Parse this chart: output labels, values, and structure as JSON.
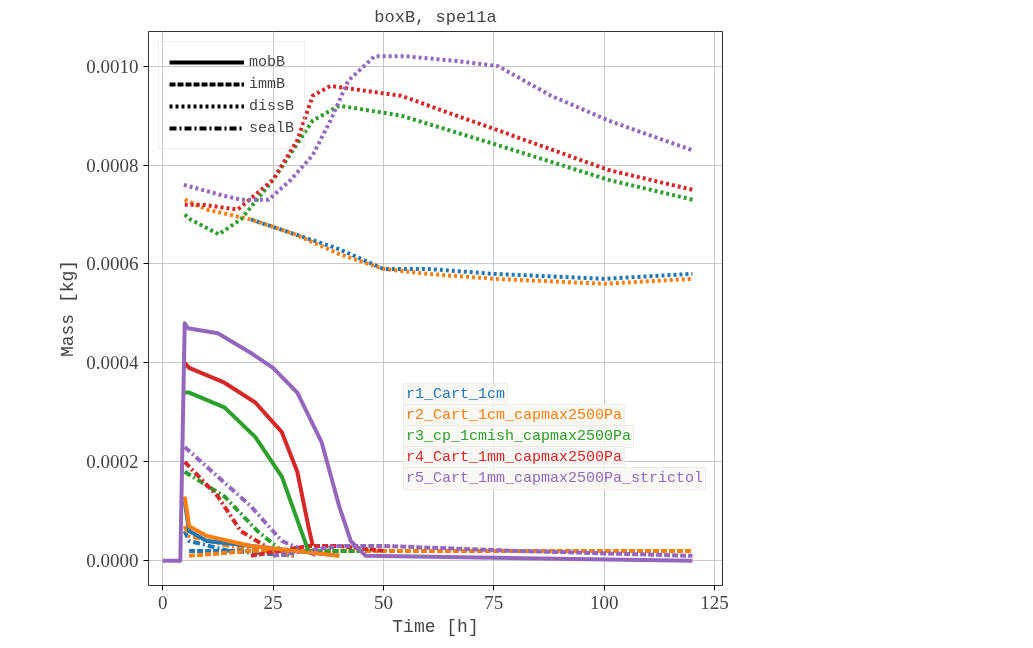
{
  "chart_data": {
    "type": "line",
    "title": "boxB, spe11a",
    "xlabel": "Time [h]",
    "ylabel": "Mass [kg]",
    "xlim": [
      -3.2,
      126.8
    ],
    "ylim": [
      -5e-05,
      0.00107
    ],
    "xticks": [
      0,
      25,
      50,
      75,
      100,
      125
    ],
    "yticks": [
      {
        "value": 0,
        "label": "0.0000"
      },
      {
        "value": 0.0002,
        "label": "0.0002"
      },
      {
        "value": 0.0004,
        "label": "0.0004"
      },
      {
        "value": 0.0006,
        "label": "0.0006"
      },
      {
        "value": 0.0008,
        "label": "0.0008"
      },
      {
        "value": 0.001,
        "label": "0.0010"
      }
    ],
    "grid": true,
    "legend": "bottom right",
    "annotations": [
      "mobB",
      "immB",
      "dissB",
      "sealB"
    ],
    "series": [
      {
        "color": "#1f77b4",
        "line_style": "dotted",
        "x": [
          20,
          30,
          40,
          50,
          60,
          75,
          100,
          120
        ],
        "values": [
          0.00069,
          0.00066,
          0.00063,
          0.00059,
          0.00059,
          0.00058,
          0.00057,
          0.00058
        ]
      },
      {
        "color": "#ff7f0e",
        "line_style": "dotted",
        "x": [
          5,
          10,
          20,
          30,
          40,
          50,
          60,
          75,
          100,
          120
        ],
        "values": [
          0.00073,
          0.00071,
          0.00069,
          0.00066,
          0.00062,
          0.00059,
          0.00058,
          0.00057,
          0.00056,
          0.00057
        ]
      },
      {
        "color": "#2ca02c",
        "line_style": "dotted",
        "x": [
          5,
          6.3,
          12.7,
          17.7,
          25,
          34,
          40,
          54,
          76,
          101,
          120
        ],
        "values": [
          0.0007,
          0.00069,
          0.00066,
          0.00069,
          0.00077,
          0.00089,
          0.00092,
          0.0009,
          0.00084,
          0.00077,
          0.00073
        ]
      },
      {
        "color": "#d62728",
        "line_style": "dotted",
        "x": [
          5,
          9,
          17,
          25,
          30.5,
          34,
          38,
          54,
          76,
          101,
          120
        ],
        "values": [
          0.00072,
          0.00072,
          0.00071,
          0.00077,
          0.00085,
          0.00094,
          0.00096,
          0.00094,
          0.00087,
          0.00079,
          0.00075
        ]
      },
      {
        "color": "#9467bd",
        "line_style": "dotted",
        "x": [
          4.8,
          13,
          17.7,
          24,
          29,
          34,
          38,
          42,
          48,
          55,
          67,
          76,
          88,
          101,
          120
        ],
        "values": [
          0.00076,
          0.00074,
          0.00073,
          0.00073,
          0.00077,
          0.00082,
          0.00089,
          0.00097,
          0.00102,
          0.00102,
          0.00101,
          0.001,
          0.00094,
          0.00089,
          0.00083
        ]
      },
      {
        "color": "#1f77b4",
        "line_style": "dashdot",
        "x": [
          5,
          6,
          15,
          30
        ],
        "values": [
          6e-05,
          4e-05,
          2e-05,
          1e-05
        ]
      },
      {
        "color": "#ff7f0e",
        "line_style": "dashdot",
        "x": [
          5,
          6,
          15,
          30
        ],
        "values": [
          7e-05,
          5e-05,
          3e-05,
          1e-05
        ]
      },
      {
        "color": "#2ca02c",
        "line_style": "dashdot",
        "x": [
          5,
          14,
          21.5,
          27
        ],
        "values": [
          0.00018,
          0.00013,
          6e-05,
          2e-05
        ]
      },
      {
        "color": "#d62728",
        "line_style": "dashdot",
        "x": [
          5,
          12.5,
          17.7,
          25
        ],
        "values": [
          0.0002,
          0.00013,
          6e-05,
          2e-05
        ]
      },
      {
        "color": "#9467bd",
        "line_style": "dashdot",
        "x": [
          5,
          12.5,
          20,
          27,
          35
        ],
        "values": [
          0.00023,
          0.00017,
          0.00011,
          4e-05,
          1e-05
        ]
      },
      {
        "color": "#1f77b4",
        "line_style": "dashed",
        "x": [
          6,
          20
        ],
        "values": [
          2e-05,
          2e-05
        ]
      },
      {
        "color": "#ff7f0e",
        "line_style": "dashed",
        "x": [
          6,
          20,
          40,
          120
        ],
        "values": [
          1e-05,
          2e-05,
          2e-05,
          2e-05
        ]
      },
      {
        "color": "#2ca02c",
        "line_style": "dashed",
        "x": [
          33,
          45
        ],
        "values": [
          2e-05,
          2e-05
        ]
      },
      {
        "color": "#d62728",
        "line_style": "dashed",
        "x": [
          20,
          33,
          40,
          50
        ],
        "values": [
          1e-05,
          3e-05,
          3e-05,
          2e-05
        ]
      },
      {
        "color": "#9467bd",
        "line_style": "dashed",
        "x": [
          25,
          40,
          50,
          80,
          120
        ],
        "values": [
          1e-05,
          3e-05,
          3e-05,
          2e-05,
          1e-05
        ]
      },
      {
        "name": "r1_Cart_1cm",
        "color": "#1f77b4",
        "line_style": "solid",
        "x": [
          5,
          6,
          10,
          20,
          30,
          40
        ],
        "values": [
          0.00012,
          6e-05,
          4e-05,
          3e-05,
          2e-05,
          1e-05
        ]
      },
      {
        "name": "r2_Cart_1cm_capmax2500Pa",
        "color": "#ff7f0e",
        "line_style": "solid",
        "x": [
          5,
          6,
          10,
          20,
          30,
          40
        ],
        "values": [
          0.00013,
          7e-05,
          5e-05,
          3e-05,
          2e-05,
          1e-05
        ]
      },
      {
        "name": "r3_cp_1cmish_capmax2500Pa",
        "color": "#2ca02c",
        "line_style": "solid",
        "x": [
          5,
          6,
          14,
          21,
          27,
          31,
          33
        ],
        "values": [
          0.00034,
          0.00034,
          0.00031,
          0.00025,
          0.00017,
          7e-05,
          2e-05
        ]
      },
      {
        "name": "r4_Cart_1mm_capmax2500Pa",
        "color": "#d62728",
        "line_style": "solid",
        "x": [
          5,
          6,
          14,
          21,
          27,
          30.5,
          33,
          34
        ],
        "values": [
          0.0004,
          0.00039,
          0.00036,
          0.00032,
          0.00026,
          0.00018,
          7e-05,
          3e-05
        ]
      },
      {
        "name": "r5_Cart_1mm_capmax2500Pa_strictol",
        "color": "#9467bd",
        "line_style": "solid",
        "x": [
          0,
          4,
          5,
          5.7,
          12.5,
          20,
          25,
          30.5,
          36,
          40,
          42.6,
          46,
          120
        ],
        "values": [
          0,
          0,
          0.00048,
          0.00047,
          0.00046,
          0.00042,
          0.00039,
          0.00034,
          0.00024,
          0.00011,
          4e-05,
          1e-05,
          0
        ]
      }
    ]
  }
}
